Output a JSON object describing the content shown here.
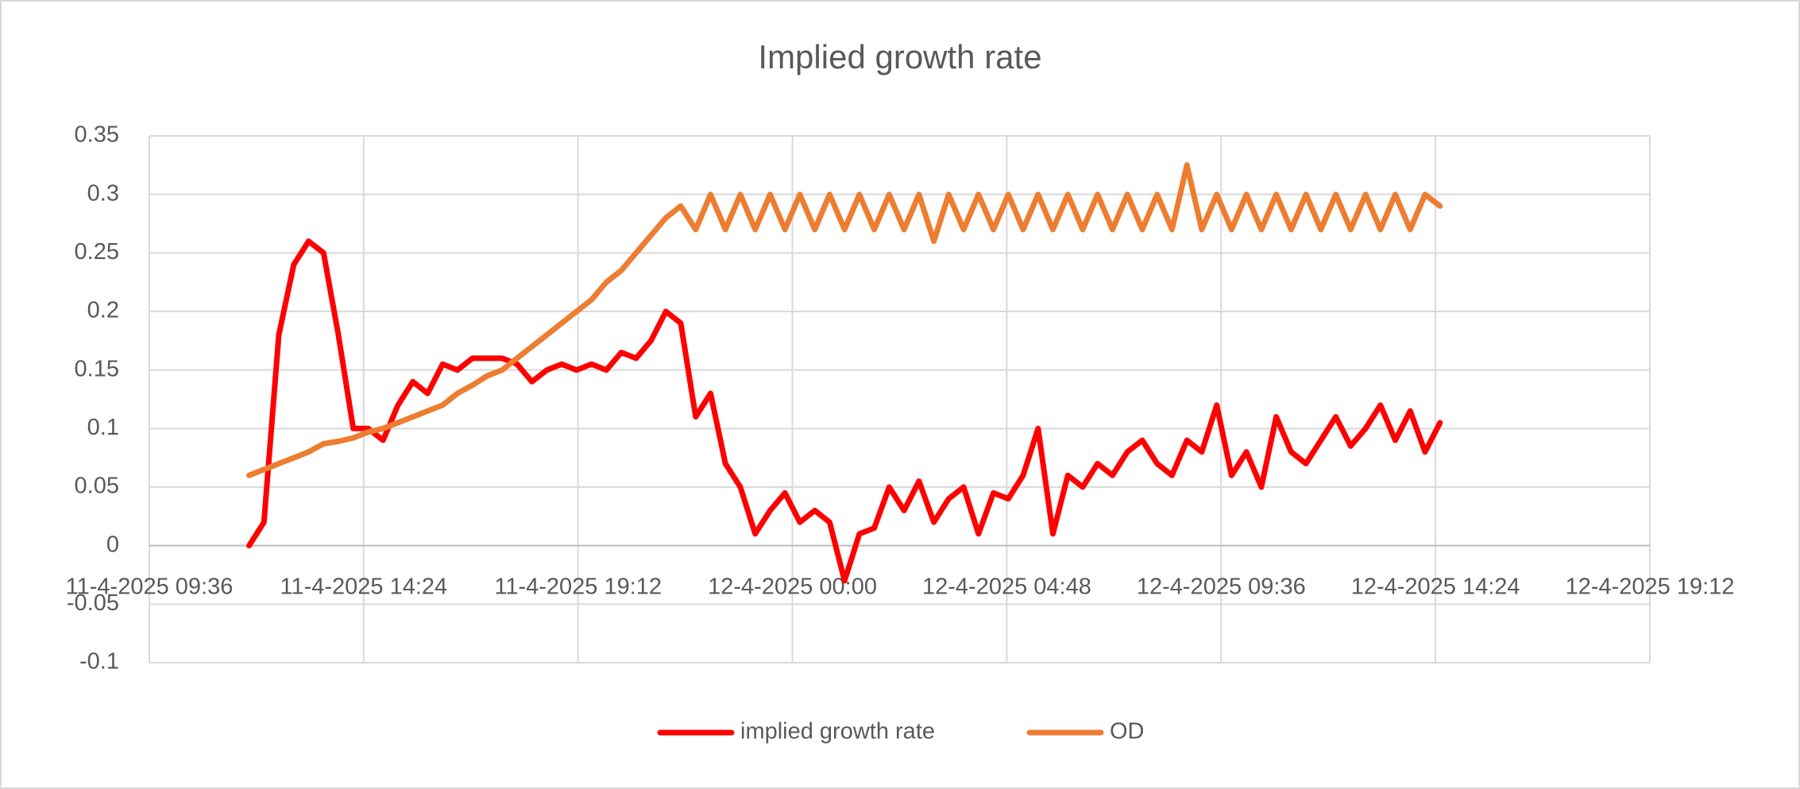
{
  "chart_data": {
    "type": "line",
    "title": "Implied growth rate",
    "x": [
      "11-4-2025 11:50",
      "11-4-2025 12:10",
      "11-4-2025 12:30",
      "11-4-2025 12:50",
      "11-4-2025 13:10",
      "11-4-2025 13:30",
      "11-4-2025 13:50",
      "11-4-2025 14:10",
      "11-4-2025 14:30",
      "11-4-2025 14:50",
      "11-4-2025 15:10",
      "11-4-2025 15:30",
      "11-4-2025 15:50",
      "11-4-2025 16:10",
      "11-4-2025 16:30",
      "11-4-2025 16:50",
      "11-4-2025 17:10",
      "11-4-2025 17:30",
      "11-4-2025 17:50",
      "11-4-2025 18:10",
      "11-4-2025 18:30",
      "11-4-2025 18:50",
      "11-4-2025 19:10",
      "11-4-2025 19:30",
      "11-4-2025 19:50",
      "11-4-2025 20:10",
      "11-4-2025 20:30",
      "11-4-2025 20:50",
      "11-4-2025 21:10",
      "11-4-2025 21:30",
      "11-4-2025 21:50",
      "11-4-2025 22:10",
      "11-4-2025 22:30",
      "11-4-2025 22:50",
      "11-4-2025 23:10",
      "11-4-2025 23:30",
      "11-4-2025 23:50",
      "12-4-2025 00:10",
      "12-4-2025 00:30",
      "12-4-2025 00:50",
      "12-4-2025 01:10",
      "12-4-2025 01:30",
      "12-4-2025 01:50",
      "12-4-2025 02:10",
      "12-4-2025 02:30",
      "12-4-2025 02:50",
      "12-4-2025 03:10",
      "12-4-2025 03:30",
      "12-4-2025 03:50",
      "12-4-2025 04:10",
      "12-4-2025 04:30",
      "12-4-2025 04:50",
      "12-4-2025 05:10",
      "12-4-2025 05:30",
      "12-4-2025 05:50",
      "12-4-2025 06:10",
      "12-4-2025 06:30",
      "12-4-2025 06:50",
      "12-4-2025 07:10",
      "12-4-2025 07:30",
      "12-4-2025 07:50",
      "12-4-2025 08:10",
      "12-4-2025 08:30",
      "12-4-2025 08:50",
      "12-4-2025 09:10",
      "12-4-2025 09:30",
      "12-4-2025 09:50",
      "12-4-2025 10:10",
      "12-4-2025 10:30",
      "12-4-2025 10:50",
      "12-4-2025 11:10",
      "12-4-2025 11:30",
      "12-4-2025 11:50",
      "12-4-2025 12:10",
      "12-4-2025 12:30",
      "12-4-2025 12:50",
      "12-4-2025 13:10",
      "12-4-2025 13:30",
      "12-4-2025 13:50",
      "12-4-2025 14:10",
      "12-4-2025 14:30"
    ],
    "series": [
      {
        "name": "implied growth rate",
        "color": "#ff0000",
        "values": [
          0.0,
          0.02,
          0.18,
          0.24,
          0.26,
          0.25,
          0.18,
          0.1,
          0.1,
          0.09,
          0.12,
          0.14,
          0.13,
          0.155,
          0.15,
          0.16,
          0.16,
          0.16,
          0.155,
          0.14,
          0.15,
          0.155,
          0.15,
          0.155,
          0.15,
          0.165,
          0.16,
          0.175,
          0.2,
          0.19,
          0.11,
          0.13,
          0.07,
          0.05,
          0.01,
          0.03,
          0.045,
          0.02,
          0.03,
          0.02,
          -0.03,
          0.01,
          0.015,
          0.05,
          0.03,
          0.055,
          0.02,
          0.04,
          0.05,
          0.01,
          0.045,
          0.04,
          0.06,
          0.1,
          0.01,
          0.06,
          0.05,
          0.07,
          0.06,
          0.08,
          0.09,
          0.07,
          0.06,
          0.09,
          0.08,
          0.12,
          0.06,
          0.08,
          0.05,
          0.11,
          0.08,
          0.07,
          0.09,
          0.11,
          0.085,
          0.1,
          0.12,
          0.09,
          0.115,
          0.08,
          0.105
        ]
      },
      {
        "name": "OD",
        "color": "#ed7d31",
        "values": [
          0.06,
          0.065,
          0.07,
          0.075,
          0.08,
          0.087,
          0.089,
          0.092,
          0.097,
          0.1,
          0.105,
          0.11,
          0.115,
          0.12,
          0.13,
          0.137,
          0.145,
          0.15,
          0.16,
          0.17,
          0.18,
          0.19,
          0.2,
          0.21,
          0.225,
          0.235,
          0.25,
          0.265,
          0.28,
          0.29,
          0.27,
          0.3,
          0.27,
          0.3,
          0.27,
          0.3,
          0.27,
          0.3,
          0.27,
          0.3,
          0.27,
          0.3,
          0.27,
          0.3,
          0.27,
          0.3,
          0.26,
          0.3,
          0.27,
          0.3,
          0.27,
          0.3,
          0.27,
          0.3,
          0.27,
          0.3,
          0.27,
          0.3,
          0.27,
          0.3,
          0.27,
          0.3,
          0.27,
          0.325,
          0.27,
          0.3,
          0.27,
          0.3,
          0.27,
          0.3,
          0.27,
          0.3,
          0.27,
          0.3,
          0.27,
          0.3,
          0.27,
          0.3,
          0.27,
          0.3,
          0.29
        ]
      }
    ],
    "xlim": [
      "11-4-2025 09:36",
      "12-4-2025 19:12"
    ],
    "xticks": [
      {
        "value": "11-4-2025 09:36",
        "label": "11-4-2025 09:36"
      },
      {
        "value": "11-4-2025 14:24",
        "label": "11-4-2025 14:24"
      },
      {
        "value": "11-4-2025 19:12",
        "label": "11-4-2025 19:12"
      },
      {
        "value": "12-4-2025 00:00",
        "label": "12-4-2025 00:00"
      },
      {
        "value": "12-4-2025 04:48",
        "label": "12-4-2025 04:48"
      },
      {
        "value": "12-4-2025 09:36",
        "label": "12-4-2025 09:36"
      },
      {
        "value": "12-4-2025 14:24",
        "label": "12-4-2025 14:24"
      },
      {
        "value": "12-4-2025 19:12",
        "label": "12-4-2025 19:12"
      }
    ],
    "ylim": [
      -0.1,
      0.35
    ],
    "yticks": [
      -0.1,
      -0.05,
      0,
      0.05,
      0.1,
      0.15,
      0.2,
      0.25,
      0.3,
      0.35
    ],
    "grid": true,
    "legend": "bottom"
  }
}
